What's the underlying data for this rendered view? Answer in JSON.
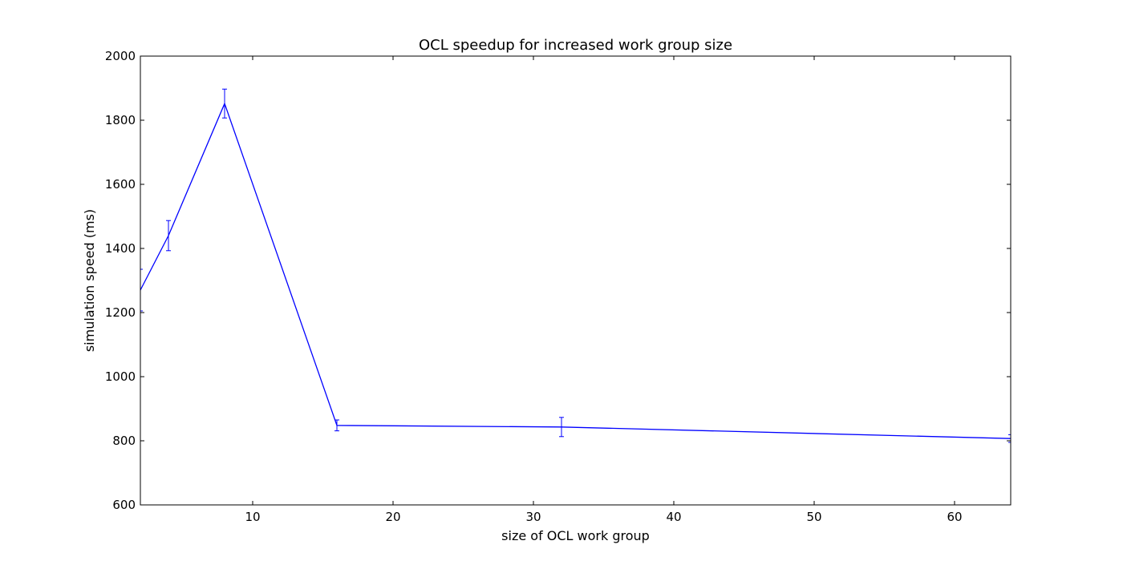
{
  "chart_data": {
    "type": "line",
    "title": "OCL speedup for increased work group size",
    "xlabel": "size of OCL work group",
    "ylabel": "simulation speed (ms)",
    "xlim": [
      2,
      64
    ],
    "ylim": [
      600,
      2000
    ],
    "xticks": [
      10,
      20,
      30,
      40,
      50,
      60
    ],
    "yticks": [
      600,
      800,
      1000,
      1200,
      1400,
      1600,
      1800,
      2000
    ],
    "grid": false,
    "legend": "none",
    "series": [
      {
        "x": [
          2,
          4,
          8,
          16,
          32,
          64
        ],
        "y": [
          1270,
          1440,
          1852,
          848,
          843,
          807
        ],
        "yerr": [
          65,
          47,
          45,
          17,
          30,
          12
        ],
        "color": "#0000ff"
      }
    ]
  }
}
